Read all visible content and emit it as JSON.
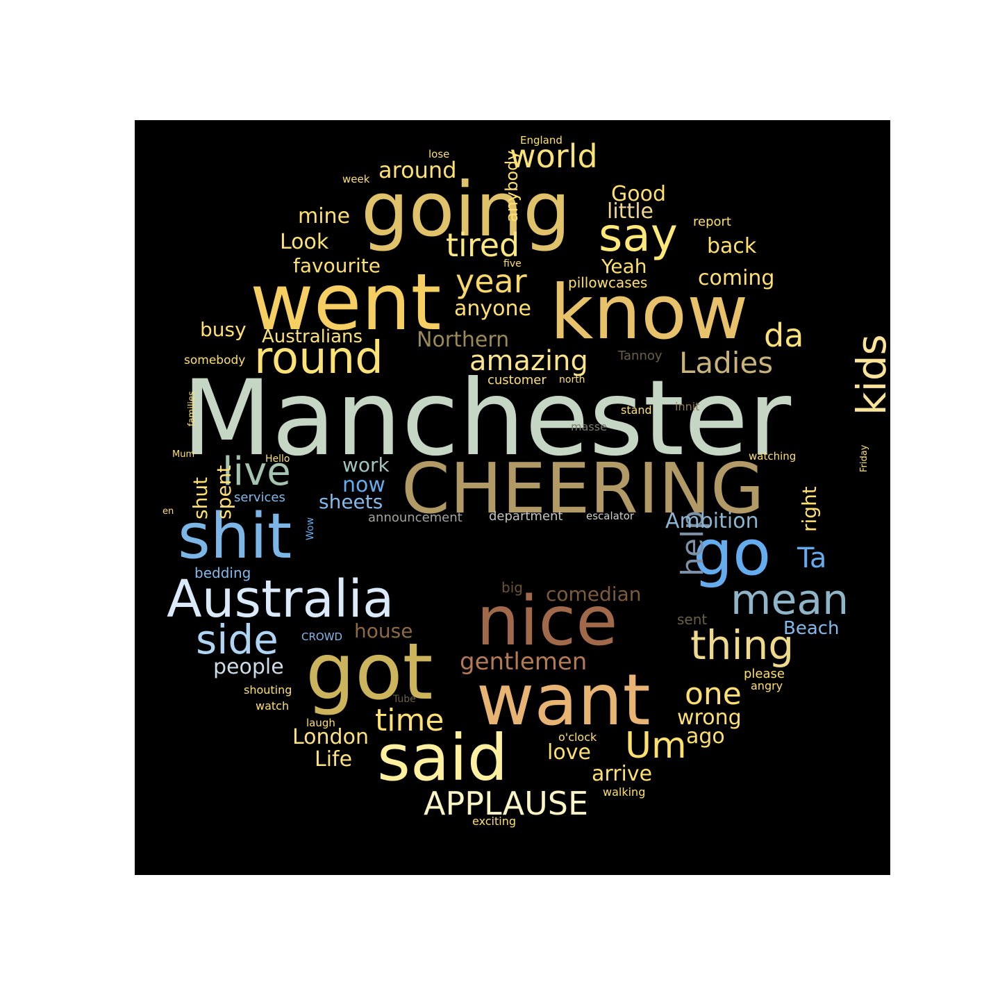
{
  "colors": {
    "panel": "#000000",
    "page": "#ffffff"
  },
  "words": [
    {
      "text": "Manchester",
      "color": "#c5d7c4"
    },
    {
      "text": "CHEERING",
      "color": "#b29a67"
    },
    {
      "text": "know",
      "color": "#e8c26a"
    },
    {
      "text": "went",
      "color": "#f5cf62"
    },
    {
      "text": "going",
      "color": "#e0c26a"
    },
    {
      "text": "got",
      "color": "#ccb45c"
    },
    {
      "text": "nice",
      "color": "#a06a4a"
    },
    {
      "text": "want",
      "color": "#e8b474"
    },
    {
      "text": "said",
      "color": "#fff0a0"
    },
    {
      "text": "shit",
      "color": "#7bb6e6"
    },
    {
      "text": "go",
      "color": "#64acee"
    },
    {
      "text": "Australia",
      "color": "#dbeafb"
    },
    {
      "text": "round",
      "color": "#fde276"
    },
    {
      "text": "say",
      "color": "#fde878"
    },
    {
      "text": "kids",
      "color": "#fbe39a"
    },
    {
      "text": "mean",
      "color": "#8fb6c8"
    },
    {
      "text": "thing",
      "color": "#efd98a"
    },
    {
      "text": "side",
      "color": "#b0d4f4"
    },
    {
      "text": "tired",
      "color": "#fde880"
    },
    {
      "text": "year",
      "color": "#f8d868"
    },
    {
      "text": "amazing",
      "color": "#fae48c"
    },
    {
      "text": "Ladies",
      "color": "#c8b47a"
    },
    {
      "text": "live",
      "color": "#a4c4b0"
    },
    {
      "text": "world",
      "color": "#fbe278"
    },
    {
      "text": "help",
      "color": "#7c90a6"
    },
    {
      "text": "Um",
      "color": "#fde070"
    },
    {
      "text": "APPLAUSE",
      "color": "#fbf4c4"
    },
    {
      "text": "time",
      "color": "#fde070"
    },
    {
      "text": "da",
      "color": "#fbe278"
    },
    {
      "text": "one",
      "color": "#fde070"
    },
    {
      "text": "Ta",
      "color": "#64acee"
    },
    {
      "text": "around",
      "color": "#fde070"
    },
    {
      "text": "Good",
      "color": "#fde070"
    },
    {
      "text": "little",
      "color": "#f0d690"
    },
    {
      "text": "mine",
      "color": "#fde070"
    },
    {
      "text": "Look",
      "color": "#fbe278"
    },
    {
      "text": "back",
      "color": "#fde070"
    },
    {
      "text": "favourite",
      "color": "#fde070"
    },
    {
      "text": "Yeah",
      "color": "#fde070"
    },
    {
      "text": "coming",
      "color": "#fde070"
    },
    {
      "text": "anyone",
      "color": "#fde070"
    },
    {
      "text": "busy",
      "color": "#fde070"
    },
    {
      "text": "Australians",
      "color": "#fbe278"
    },
    {
      "text": "Northern",
      "color": "#9a8a58"
    },
    {
      "text": "gentlemen",
      "color": "#b47a54"
    },
    {
      "text": "wrong",
      "color": "#fde070"
    },
    {
      "text": "ago",
      "color": "#fde070"
    },
    {
      "text": "people",
      "color": "#cbdde8"
    },
    {
      "text": "London",
      "color": "#fde080"
    },
    {
      "text": "Life",
      "color": "#fde080"
    },
    {
      "text": "love",
      "color": "#fde070"
    },
    {
      "text": "arrive",
      "color": "#fde070"
    },
    {
      "text": "work",
      "color": "#a4c4c0"
    },
    {
      "text": "now",
      "color": "#64acee"
    },
    {
      "text": "sheets",
      "color": "#84baea"
    },
    {
      "text": "Ambition",
      "color": "#8cb4d0"
    },
    {
      "text": "right",
      "color": "#fde070"
    },
    {
      "text": "shut",
      "color": "#fde070"
    },
    {
      "text": "spent",
      "color": "#fde070"
    },
    {
      "text": "house",
      "color": "#8c6a46"
    },
    {
      "text": "comedian",
      "color": "#7c5c3c"
    },
    {
      "text": "Beach",
      "color": "#84baea"
    },
    {
      "text": "anybody",
      "color": "#fde070"
    },
    {
      "text": "pillowcases",
      "color": "#fde070"
    },
    {
      "text": "customer",
      "color": "#fde070"
    },
    {
      "text": "Tannoy",
      "color": "#6a6044"
    },
    {
      "text": "somebody",
      "color": "#fde070"
    },
    {
      "text": "report",
      "color": "#fde070"
    },
    {
      "text": "England",
      "color": "#fde070"
    },
    {
      "text": "lose",
      "color": "#fde070"
    },
    {
      "text": "week",
      "color": "#fde070"
    },
    {
      "text": "five",
      "color": "#fde070"
    },
    {
      "text": "north",
      "color": "#fde070"
    },
    {
      "text": "families",
      "color": "#fde070"
    },
    {
      "text": "stand",
      "color": "#fde070"
    },
    {
      "text": "innit",
      "color": "#8c7a52"
    },
    {
      "text": "masse",
      "color": "#7c7c74"
    },
    {
      "text": "Mum",
      "color": "#fde070"
    },
    {
      "text": "Hello",
      "color": "#fde070"
    },
    {
      "text": "watching",
      "color": "#fde070"
    },
    {
      "text": "Friday",
      "color": "#fde070"
    },
    {
      "text": "services",
      "color": "#84baea"
    },
    {
      "text": "announcement",
      "color": "#a4a4a0"
    },
    {
      "text": "department",
      "color": "#c4c4c0"
    },
    {
      "text": "escalator",
      "color": "#d0d0d0"
    },
    {
      "text": "en",
      "color": "#fde070"
    },
    {
      "text": "Wow",
      "color": "#64acee"
    },
    {
      "text": "bedding",
      "color": "#84baea"
    },
    {
      "text": "big",
      "color": "#6a5434"
    },
    {
      "text": "sent",
      "color": "#6a6044"
    },
    {
      "text": "CROWD",
      "color": "#84baea"
    },
    {
      "text": "please",
      "color": "#fde070"
    },
    {
      "text": "angry",
      "color": "#fde070"
    },
    {
      "text": "shouting",
      "color": "#fde070"
    },
    {
      "text": "Tube",
      "color": "#6a6044"
    },
    {
      "text": "watch",
      "color": "#fde070"
    },
    {
      "text": "laugh",
      "color": "#fde070"
    },
    {
      "text": "o'clock",
      "color": "#fde070"
    },
    {
      "text": "walking",
      "color": "#fde070"
    },
    {
      "text": "exciting",
      "color": "#fde070"
    }
  ]
}
